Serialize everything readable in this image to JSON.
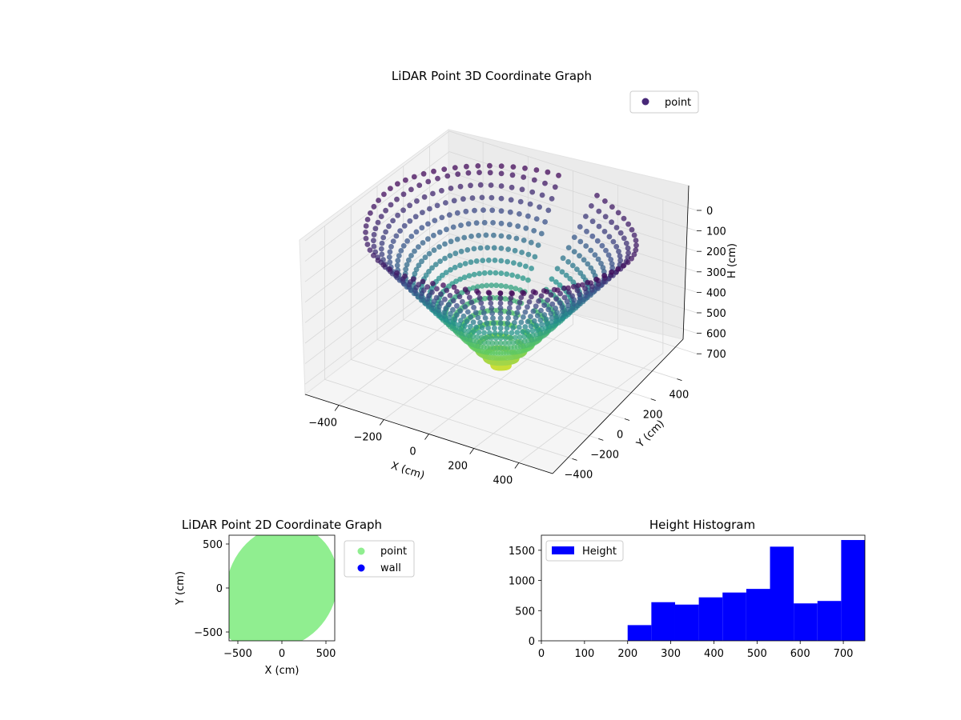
{
  "chart_data": [
    {
      "type": "scatter3d",
      "title": "LiDAR Point 3D Coordinate Graph",
      "xlabel": "X (cm)",
      "ylabel": "Y (cm)",
      "zlabel": "H (cm)",
      "xlim": [
        -550,
        550
      ],
      "ylim": [
        -550,
        550
      ],
      "zlim": [
        0,
        750
      ],
      "z_inverted": true,
      "xticks": [
        -400,
        -200,
        0,
        200,
        400
      ],
      "yticks": [
        -400,
        -200,
        0,
        200,
        400
      ],
      "zticks": [
        0,
        100,
        200,
        300,
        400,
        500,
        600,
        700
      ],
      "legend": {
        "entries": [
          "point"
        ],
        "placement": "top-right"
      },
      "colormap": [
        "#440154",
        "#3b528b",
        "#21918c",
        "#5ec962",
        "#fde725"
      ],
      "marker_color": "#482878",
      "grid": true
    },
    {
      "type": "scatter",
      "title": "LiDAR Point 2D Coordinate Graph",
      "xlabel": "X (cm)",
      "ylabel": "Y (cm)",
      "xlim": [
        -600,
        600
      ],
      "ylim": [
        -600,
        600
      ],
      "xticks": [
        -500,
        0,
        500
      ],
      "yticks": [
        -500,
        0,
        500
      ],
      "series": [
        {
          "name": "point",
          "color": "#90ee90"
        },
        {
          "name": "wall",
          "color": "#0000ff"
        }
      ],
      "legend": {
        "placement": "outside-right"
      }
    },
    {
      "type": "bar",
      "title": "Height Histogram",
      "xlim": [
        0,
        750
      ],
      "ylim": [
        0,
        1750
      ],
      "xticks": [
        0,
        100,
        200,
        300,
        400,
        500,
        600,
        700
      ],
      "yticks": [
        0,
        500,
        1000,
        1500
      ],
      "bin_edges": [
        200,
        255,
        310,
        365,
        420,
        475,
        530,
        585,
        640,
        695,
        750
      ],
      "values": [
        260,
        640,
        600,
        720,
        800,
        860,
        1560,
        620,
        660,
        1670
      ],
      "series": [
        {
          "name": "Height",
          "color": "#0000ff"
        }
      ],
      "legend": {
        "placement": "top-left"
      }
    }
  ]
}
